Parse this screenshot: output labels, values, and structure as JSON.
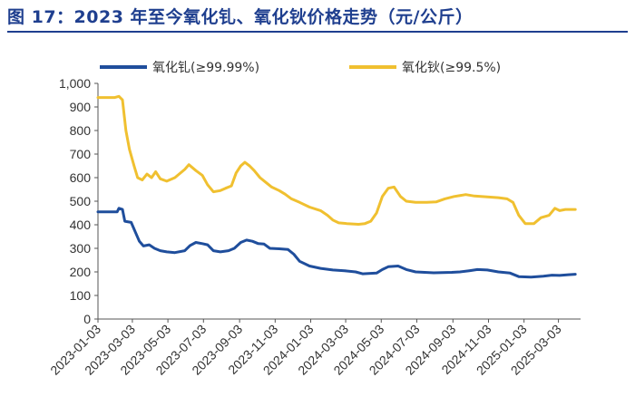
{
  "figure": {
    "title": "图 17：2023 年至今氧化钆、氧化钬价格走势（元/公斤）"
  },
  "chart_data": {
    "type": "line",
    "title": "图 17：2023 年至今氧化钆、氧化钬价格走势（元/公斤）",
    "xlabel": "",
    "ylabel": "",
    "ylim": [
      0,
      1000
    ],
    "yticks": [
      "0",
      "100",
      "200",
      "300",
      "400",
      "500",
      "600",
      "700",
      "800",
      "900",
      "1,000"
    ],
    "xticks": [
      "2023-01-03",
      "2023-03-03",
      "2023-05-03",
      "2023-07-03",
      "2023-09-03",
      "2023-11-03",
      "2024-01-03",
      "2024-03-03",
      "2024-05-03",
      "2024-07-03",
      "2024-09-03",
      "2024-11-03",
      "2025-01-03",
      "2025-03-03"
    ],
    "legend_position": "top",
    "grid": false,
    "series": [
      {
        "name": "氧化钆(≥99.99%)",
        "color": "#1f4e9c",
        "points": [
          [
            "2023-01-03",
            455
          ],
          [
            "2023-02-05",
            455
          ],
          [
            "2023-02-08",
            470
          ],
          [
            "2023-02-14",
            465
          ],
          [
            "2023-02-18",
            415
          ],
          [
            "2023-03-01",
            410
          ],
          [
            "2023-03-08",
            370
          ],
          [
            "2023-03-15",
            330
          ],
          [
            "2023-03-22",
            310
          ],
          [
            "2023-04-01",
            315
          ],
          [
            "2023-04-10",
            300
          ],
          [
            "2023-04-20",
            290
          ],
          [
            "2023-05-01",
            285
          ],
          [
            "2023-05-15",
            282
          ],
          [
            "2023-06-01",
            290
          ],
          [
            "2023-06-10",
            312
          ],
          [
            "2023-06-20",
            325
          ],
          [
            "2023-07-01",
            320
          ],
          [
            "2023-07-10",
            315
          ],
          [
            "2023-07-20",
            290
          ],
          [
            "2023-08-01",
            285
          ],
          [
            "2023-08-15",
            290
          ],
          [
            "2023-08-25",
            300
          ],
          [
            "2023-09-05",
            325
          ],
          [
            "2023-09-15",
            335
          ],
          [
            "2023-09-25",
            330
          ],
          [
            "2023-10-05",
            320
          ],
          [
            "2023-10-15",
            318
          ],
          [
            "2023-10-25",
            300
          ],
          [
            "2023-11-10",
            298
          ],
          [
            "2023-11-25",
            295
          ],
          [
            "2023-12-05",
            275
          ],
          [
            "2023-12-15",
            245
          ],
          [
            "2024-01-01",
            225
          ],
          [
            "2024-01-20",
            215
          ],
          [
            "2024-02-10",
            208
          ],
          [
            "2024-03-01",
            205
          ],
          [
            "2024-03-20",
            200
          ],
          [
            "2024-04-01",
            192
          ],
          [
            "2024-04-25",
            195
          ],
          [
            "2024-05-05",
            210
          ],
          [
            "2024-05-15",
            222
          ],
          [
            "2024-06-01",
            225
          ],
          [
            "2024-06-15",
            210
          ],
          [
            "2024-07-01",
            200
          ],
          [
            "2024-08-01",
            196
          ],
          [
            "2024-09-01",
            198
          ],
          [
            "2024-09-15",
            200
          ],
          [
            "2024-10-01",
            205
          ],
          [
            "2024-10-15",
            210
          ],
          [
            "2024-11-01",
            208
          ],
          [
            "2024-11-20",
            200
          ],
          [
            "2024-12-10",
            195
          ],
          [
            "2024-12-25",
            180
          ],
          [
            "2025-01-15",
            178
          ],
          [
            "2025-02-05",
            182
          ],
          [
            "2025-02-20",
            186
          ],
          [
            "2025-03-05",
            185
          ],
          [
            "2025-03-20",
            188
          ],
          [
            "2025-04-01",
            190
          ]
        ]
      },
      {
        "name": "氧化钬(≥99.5%)",
        "color": "#f0c030",
        "points": [
          [
            "2023-01-03",
            940
          ],
          [
            "2023-02-01",
            940
          ],
          [
            "2023-02-08",
            945
          ],
          [
            "2023-02-14",
            930
          ],
          [
            "2023-02-20",
            800
          ],
          [
            "2023-02-26",
            720
          ],
          [
            "2023-03-06",
            650
          ],
          [
            "2023-03-12",
            600
          ],
          [
            "2023-03-20",
            590
          ],
          [
            "2023-03-28",
            615
          ],
          [
            "2023-04-05",
            600
          ],
          [
            "2023-04-12",
            625
          ],
          [
            "2023-04-20",
            595
          ],
          [
            "2023-05-01",
            585
          ],
          [
            "2023-05-15",
            600
          ],
          [
            "2023-06-01",
            635
          ],
          [
            "2023-06-08",
            655
          ],
          [
            "2023-06-20",
            630
          ],
          [
            "2023-07-01",
            610
          ],
          [
            "2023-07-10",
            570
          ],
          [
            "2023-07-20",
            540
          ],
          [
            "2023-08-01",
            545
          ],
          [
            "2023-08-10",
            555
          ],
          [
            "2023-08-20",
            565
          ],
          [
            "2023-08-28",
            620
          ],
          [
            "2023-09-05",
            650
          ],
          [
            "2023-09-12",
            665
          ],
          [
            "2023-09-20",
            650
          ],
          [
            "2023-09-28",
            630
          ],
          [
            "2023-10-08",
            600
          ],
          [
            "2023-10-18",
            580
          ],
          [
            "2023-10-28",
            560
          ],
          [
            "2023-11-10",
            545
          ],
          [
            "2023-11-20",
            530
          ],
          [
            "2023-12-01",
            510
          ],
          [
            "2023-12-15",
            495
          ],
          [
            "2024-01-01",
            475
          ],
          [
            "2024-01-20",
            460
          ],
          [
            "2024-02-01",
            440
          ],
          [
            "2024-02-10",
            420
          ],
          [
            "2024-02-20",
            408
          ],
          [
            "2024-03-05",
            405
          ],
          [
            "2024-03-25",
            402
          ],
          [
            "2024-04-05",
            405
          ],
          [
            "2024-04-15",
            415
          ],
          [
            "2024-04-25",
            450
          ],
          [
            "2024-05-05",
            520
          ],
          [
            "2024-05-15",
            555
          ],
          [
            "2024-05-25",
            560
          ],
          [
            "2024-06-05",
            520
          ],
          [
            "2024-06-15",
            500
          ],
          [
            "2024-07-01",
            495
          ],
          [
            "2024-07-20",
            495
          ],
          [
            "2024-08-05",
            497
          ],
          [
            "2024-08-20",
            510
          ],
          [
            "2024-09-05",
            520
          ],
          [
            "2024-09-25",
            528
          ],
          [
            "2024-10-10",
            522
          ],
          [
            "2024-11-01",
            518
          ],
          [
            "2024-11-20",
            515
          ],
          [
            "2024-12-05",
            510
          ],
          [
            "2024-12-15",
            495
          ],
          [
            "2024-12-25",
            440
          ],
          [
            "2025-01-05",
            405
          ],
          [
            "2025-01-20",
            405
          ],
          [
            "2025-02-01",
            430
          ],
          [
            "2025-02-15",
            440
          ],
          [
            "2025-02-25",
            470
          ],
          [
            "2025-03-05",
            460
          ],
          [
            "2025-03-15",
            465
          ],
          [
            "2025-04-01",
            465
          ]
        ]
      }
    ]
  }
}
